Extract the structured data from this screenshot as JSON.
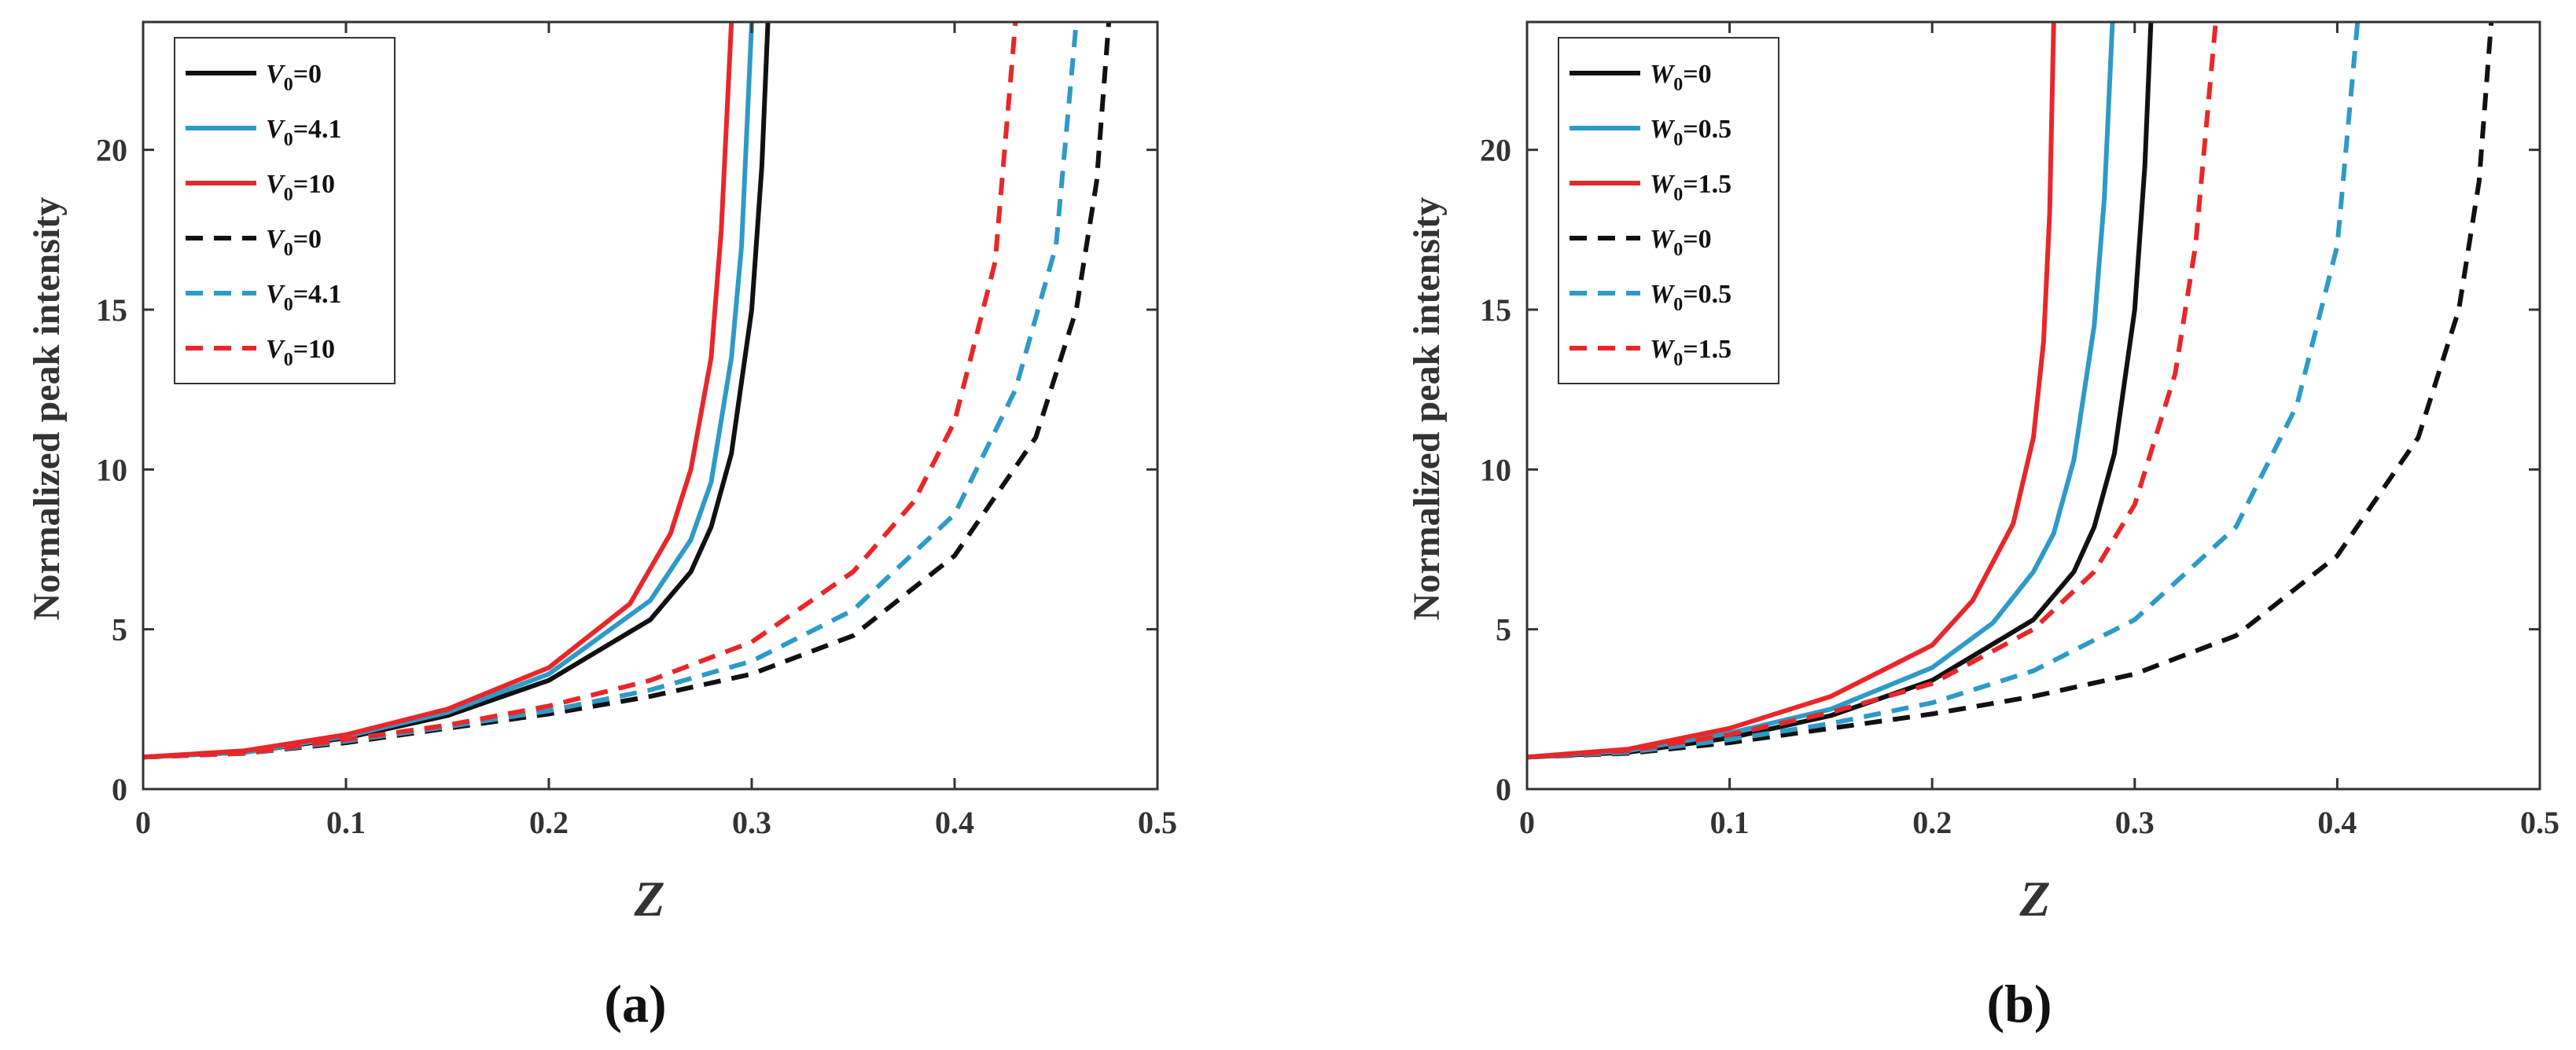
{
  "colors": {
    "black": "#111111",
    "blue": "#2E9AC8",
    "red": "#E8272A",
    "axis": "#333333"
  },
  "chart_data": [
    {
      "type": "line",
      "caption": "(a)",
      "xlabel": "Z",
      "ylabel": "Normalized peak intensity",
      "xlim": [
        0,
        0.5
      ],
      "ylim": [
        0,
        24
      ],
      "xticks": [
        0,
        0.1,
        0.2,
        0.3,
        0.4,
        0.5
      ],
      "xtick_labels": [
        "0",
        "0.1",
        "0.2",
        "0.3",
        "0.4",
        "0.5"
      ],
      "yticks": [
        0,
        5,
        10,
        15,
        20
      ],
      "ytick_labels": [
        "0",
        "5",
        "10",
        "15",
        "20"
      ],
      "legend_position": "top-left",
      "series": [
        {
          "var": "V",
          "sub": "0",
          "val": "=0",
          "color": "black",
          "dash": false,
          "x": [
            0,
            0.05,
            0.1,
            0.15,
            0.2,
            0.25,
            0.27,
            0.28,
            0.29,
            0.3,
            0.305,
            0.308
          ],
          "y": [
            1,
            1.15,
            1.6,
            2.3,
            3.4,
            5.3,
            6.8,
            8.2,
            10.5,
            15.0,
            19.5,
            24
          ]
        },
        {
          "var": "V",
          "sub": "0",
          "val": "=4.1",
          "color": "blue",
          "dash": false,
          "x": [
            0,
            0.05,
            0.1,
            0.15,
            0.2,
            0.25,
            0.27,
            0.28,
            0.29,
            0.295,
            0.3
          ],
          "y": [
            1,
            1.15,
            1.65,
            2.4,
            3.6,
            5.9,
            7.8,
            9.6,
            13.5,
            17.0,
            24
          ]
        },
        {
          "var": "V",
          "sub": "0",
          "val": "=10",
          "color": "red",
          "dash": false,
          "x": [
            0,
            0.05,
            0.1,
            0.15,
            0.2,
            0.24,
            0.26,
            0.27,
            0.28,
            0.285,
            0.29
          ],
          "y": [
            1,
            1.2,
            1.7,
            2.5,
            3.8,
            5.8,
            8.0,
            10.0,
            13.5,
            17.5,
            24
          ]
        },
        {
          "var": "V",
          "sub": "0",
          "val": "=0",
          "color": "black",
          "dash": true,
          "x": [
            0,
            0.05,
            0.1,
            0.15,
            0.2,
            0.25,
            0.3,
            0.35,
            0.4,
            0.44,
            0.46,
            0.47,
            0.476
          ],
          "y": [
            1,
            1.12,
            1.45,
            1.9,
            2.35,
            2.9,
            3.6,
            4.8,
            7.3,
            11.0,
            15.0,
            19.0,
            24
          ]
        },
        {
          "var": "V",
          "sub": "0",
          "val": "=4.1",
          "color": "blue",
          "dash": true,
          "x": [
            0,
            0.05,
            0.1,
            0.15,
            0.2,
            0.25,
            0.3,
            0.35,
            0.4,
            0.43,
            0.45,
            0.46
          ],
          "y": [
            1,
            1.12,
            1.5,
            1.95,
            2.45,
            3.1,
            4.0,
            5.6,
            8.6,
            12.5,
            17.0,
            24
          ]
        },
        {
          "var": "V",
          "sub": "0",
          "val": "=10",
          "color": "red",
          "dash": true,
          "x": [
            0,
            0.05,
            0.1,
            0.15,
            0.2,
            0.25,
            0.3,
            0.35,
            0.38,
            0.4,
            0.42,
            0.43
          ],
          "y": [
            1,
            1.12,
            1.55,
            2.0,
            2.6,
            3.4,
            4.6,
            6.8,
            9.0,
            11.5,
            16.5,
            24
          ]
        }
      ]
    },
    {
      "type": "line",
      "caption": "(b)",
      "xlabel": "Z",
      "ylabel": "Normalized peak intensity",
      "xlim": [
        0,
        0.5
      ],
      "ylim": [
        0,
        24
      ],
      "xticks": [
        0,
        0.1,
        0.2,
        0.3,
        0.4,
        0.5
      ],
      "xtick_labels": [
        "0",
        "0.1",
        "0.2",
        "0.3",
        "0.4",
        "0.5"
      ],
      "yticks": [
        0,
        5,
        10,
        15,
        20
      ],
      "ytick_labels": [
        "0",
        "5",
        "10",
        "15",
        "20"
      ],
      "legend_position": "top-left",
      "series": [
        {
          "var": "W",
          "sub": "0",
          "val": "=0",
          "color": "black",
          "dash": false,
          "x": [
            0,
            0.05,
            0.1,
            0.15,
            0.2,
            0.25,
            0.27,
            0.28,
            0.29,
            0.3,
            0.305,
            0.308
          ],
          "y": [
            1,
            1.15,
            1.6,
            2.3,
            3.4,
            5.3,
            6.8,
            8.2,
            10.5,
            15.0,
            19.5,
            24
          ]
        },
        {
          "var": "W",
          "sub": "0",
          "val": "=0.5",
          "color": "blue",
          "dash": false,
          "x": [
            0,
            0.05,
            0.1,
            0.15,
            0.2,
            0.23,
            0.25,
            0.26,
            0.27,
            0.28,
            0.285,
            0.289
          ],
          "y": [
            1,
            1.2,
            1.75,
            2.5,
            3.8,
            5.2,
            6.8,
            8.0,
            10.3,
            14.5,
            18.5,
            24
          ]
        },
        {
          "var": "W",
          "sub": "0",
          "val": "=1.5",
          "color": "red",
          "dash": false,
          "x": [
            0,
            0.05,
            0.1,
            0.15,
            0.2,
            0.22,
            0.24,
            0.25,
            0.255,
            0.258,
            0.26
          ],
          "y": [
            1,
            1.25,
            1.9,
            2.9,
            4.5,
            5.9,
            8.3,
            11.0,
            14.0,
            18.0,
            24
          ]
        },
        {
          "var": "W",
          "sub": "0",
          "val": "=0",
          "color": "black",
          "dash": true,
          "x": [
            0,
            0.05,
            0.1,
            0.15,
            0.2,
            0.25,
            0.3,
            0.35,
            0.4,
            0.44,
            0.46,
            0.47,
            0.476
          ],
          "y": [
            1,
            1.12,
            1.45,
            1.9,
            2.35,
            2.9,
            3.6,
            4.8,
            7.3,
            11.0,
            15.0,
            19.0,
            24
          ]
        },
        {
          "var": "W",
          "sub": "0",
          "val": "=0.5",
          "color": "blue",
          "dash": true,
          "x": [
            0,
            0.05,
            0.1,
            0.15,
            0.2,
            0.25,
            0.3,
            0.35,
            0.38,
            0.4,
            0.41
          ],
          "y": [
            1,
            1.15,
            1.55,
            2.05,
            2.7,
            3.7,
            5.3,
            8.2,
            12.0,
            17.0,
            24
          ]
        },
        {
          "var": "W",
          "sub": "0",
          "val": "=1.5",
          "color": "red",
          "dash": true,
          "x": [
            0,
            0.05,
            0.1,
            0.15,
            0.2,
            0.25,
            0.28,
            0.3,
            0.32,
            0.33,
            0.34
          ],
          "y": [
            1,
            1.2,
            1.7,
            2.4,
            3.3,
            5.0,
            6.8,
            8.9,
            13.0,
            17.0,
            24
          ]
        }
      ]
    }
  ]
}
